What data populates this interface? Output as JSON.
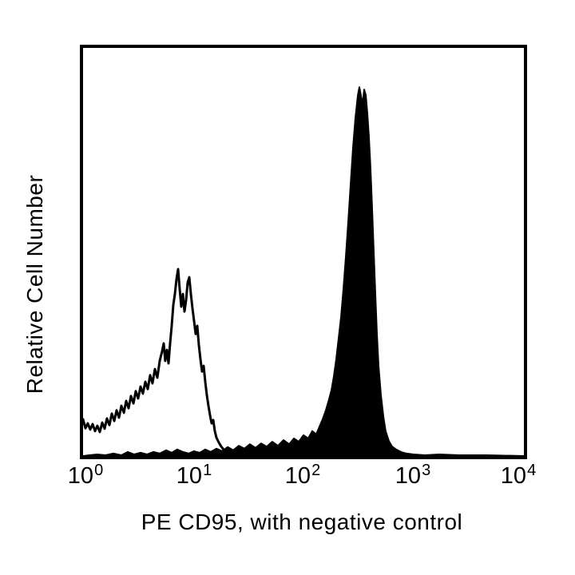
{
  "figure": {
    "background_color": "#ffffff",
    "ink_color": "#000000"
  },
  "chart_data": {
    "type": "area",
    "subtype": "flow-cytometry-overlay-histogram",
    "title": "",
    "xlabel": "PE CD95, with negative control",
    "ylabel": "Relative Cell Number",
    "x_scale": "log10",
    "xlim_log10": [
      0,
      4
    ],
    "ylim": [
      0,
      1
    ],
    "grid": false,
    "legend_position": "none",
    "x_ticks": [
      {
        "base": "10",
        "exp": "0",
        "log10": 0
      },
      {
        "base": "10",
        "exp": "1",
        "log10": 1
      },
      {
        "base": "10",
        "exp": "2",
        "log10": 2
      },
      {
        "base": "10",
        "exp": "3",
        "log10": 3
      },
      {
        "base": "10",
        "exp": "4",
        "log10": 4
      }
    ],
    "series": [
      {
        "name": "negative control",
        "style": "open-outline",
        "color": "#000000",
        "peak_log10x": 0.86,
        "peak_rel_height": 0.46,
        "points": [
          [
            0.0,
            0.09
          ],
          [
            0.022,
            0.068
          ],
          [
            0.043,
            0.08
          ],
          [
            0.065,
            0.065
          ],
          [
            0.087,
            0.078
          ],
          [
            0.109,
            0.061
          ],
          [
            0.13,
            0.074
          ],
          [
            0.152,
            0.059
          ],
          [
            0.174,
            0.082
          ],
          [
            0.196,
            0.067
          ],
          [
            0.217,
            0.092
          ],
          [
            0.239,
            0.076
          ],
          [
            0.261,
            0.104
          ],
          [
            0.283,
            0.086
          ],
          [
            0.304,
            0.112
          ],
          [
            0.326,
            0.094
          ],
          [
            0.348,
            0.123
          ],
          [
            0.37,
            0.106
          ],
          [
            0.391,
            0.135
          ],
          [
            0.413,
            0.117
          ],
          [
            0.435,
            0.147
          ],
          [
            0.457,
            0.129
          ],
          [
            0.478,
            0.159
          ],
          [
            0.5,
            0.141
          ],
          [
            0.522,
            0.17
          ],
          [
            0.543,
            0.153
          ],
          [
            0.565,
            0.182
          ],
          [
            0.587,
            0.164
          ],
          [
            0.609,
            0.198
          ],
          [
            0.63,
            0.178
          ],
          [
            0.652,
            0.213
          ],
          [
            0.674,
            0.192
          ],
          [
            0.696,
            0.233
          ],
          [
            0.717,
            0.256
          ],
          [
            0.732,
            0.276
          ],
          [
            0.746,
            0.233
          ],
          [
            0.761,
            0.26
          ],
          [
            0.775,
            0.227
          ],
          [
            0.79,
            0.276
          ],
          [
            0.804,
            0.319
          ],
          [
            0.819,
            0.37
          ],
          [
            0.833,
            0.397
          ],
          [
            0.848,
            0.433
          ],
          [
            0.862,
            0.458
          ],
          [
            0.877,
            0.409
          ],
          [
            0.891,
            0.366
          ],
          [
            0.906,
            0.397
          ],
          [
            0.92,
            0.354
          ],
          [
            0.935,
            0.382
          ],
          [
            0.949,
            0.425
          ],
          [
            0.964,
            0.438
          ],
          [
            0.978,
            0.397
          ],
          [
            0.993,
            0.362
          ],
          [
            1.007,
            0.331
          ],
          [
            1.022,
            0.299
          ],
          [
            1.036,
            0.319
          ],
          [
            1.051,
            0.272
          ],
          [
            1.065,
            0.237
          ],
          [
            1.08,
            0.207
          ],
          [
            1.094,
            0.221
          ],
          [
            1.109,
            0.182
          ],
          [
            1.123,
            0.149
          ],
          [
            1.138,
            0.123
          ],
          [
            1.152,
            0.1
          ],
          [
            1.167,
            0.08
          ],
          [
            1.181,
            0.088
          ],
          [
            1.196,
            0.061
          ],
          [
            1.21,
            0.045
          ],
          [
            1.232,
            0.033
          ],
          [
            1.254,
            0.023
          ],
          [
            1.275,
            0.016
          ],
          [
            1.304,
            0.01
          ],
          [
            1.333,
            0.014
          ],
          [
            1.362,
            0.008
          ],
          [
            1.399,
            0.006
          ],
          [
            1.442,
            0.01
          ],
          [
            1.493,
            0.006
          ],
          [
            1.551,
            0.008
          ],
          [
            1.616,
            0.006
          ],
          [
            1.696,
            0.004
          ],
          [
            1.797,
            0.006
          ],
          [
            1.913,
            0.004
          ],
          [
            2.036,
            0.004
          ],
          [
            2.145,
            0.002
          ]
        ]
      },
      {
        "name": "PE CD95",
        "style": "filled",
        "color": "#000000",
        "peak_log10x": 2.53,
        "peak_rel_height": 0.9,
        "points": [
          [
            0.0,
            0.0
          ],
          [
            0.058,
            0.002
          ],
          [
            0.13,
            0.004
          ],
          [
            0.203,
            0.002
          ],
          [
            0.275,
            0.006
          ],
          [
            0.348,
            0.002
          ],
          [
            0.406,
            0.01
          ],
          [
            0.464,
            0.004
          ],
          [
            0.522,
            0.008
          ],
          [
            0.58,
            0.004
          ],
          [
            0.638,
            0.01
          ],
          [
            0.696,
            0.006
          ],
          [
            0.754,
            0.014
          ],
          [
            0.804,
            0.008
          ],
          [
            0.855,
            0.016
          ],
          [
            0.906,
            0.01
          ],
          [
            0.957,
            0.006
          ],
          [
            1.007,
            0.012
          ],
          [
            1.058,
            0.008
          ],
          [
            1.109,
            0.016
          ],
          [
            1.159,
            0.01
          ],
          [
            1.21,
            0.018
          ],
          [
            1.261,
            0.012
          ],
          [
            1.312,
            0.022
          ],
          [
            1.362,
            0.014
          ],
          [
            1.413,
            0.025
          ],
          [
            1.464,
            0.018
          ],
          [
            1.514,
            0.029
          ],
          [
            1.565,
            0.02
          ],
          [
            1.616,
            0.031
          ],
          [
            1.667,
            0.023
          ],
          [
            1.717,
            0.035
          ],
          [
            1.768,
            0.025
          ],
          [
            1.819,
            0.039
          ],
          [
            1.87,
            0.029
          ],
          [
            1.913,
            0.043
          ],
          [
            1.957,
            0.035
          ],
          [
            2.0,
            0.051
          ],
          [
            2.043,
            0.043
          ],
          [
            2.08,
            0.061
          ],
          [
            2.116,
            0.053
          ],
          [
            2.145,
            0.072
          ],
          [
            2.174,
            0.09
          ],
          [
            2.203,
            0.112
          ],
          [
            2.232,
            0.139
          ],
          [
            2.254,
            0.162
          ],
          [
            2.275,
            0.194
          ],
          [
            2.297,
            0.237
          ],
          [
            2.319,
            0.288
          ],
          [
            2.341,
            0.342
          ],
          [
            2.362,
            0.409
          ],
          [
            2.384,
            0.487
          ],
          [
            2.406,
            0.573
          ],
          [
            2.428,
            0.667
          ],
          [
            2.449,
            0.755
          ],
          [
            2.471,
            0.828
          ],
          [
            2.493,
            0.883
          ],
          [
            2.507,
            0.904
          ],
          [
            2.522,
            0.883
          ],
          [
            2.536,
            0.861
          ],
          [
            2.551,
            0.898
          ],
          [
            2.565,
            0.885
          ],
          [
            2.58,
            0.84
          ],
          [
            2.594,
            0.781
          ],
          [
            2.609,
            0.703
          ],
          [
            2.623,
            0.605
          ],
          [
            2.638,
            0.501
          ],
          [
            2.652,
            0.397
          ],
          [
            2.667,
            0.299
          ],
          [
            2.681,
            0.221
          ],
          [
            2.703,
            0.149
          ],
          [
            2.725,
            0.096
          ],
          [
            2.746,
            0.061
          ],
          [
            2.775,
            0.037
          ],
          [
            2.804,
            0.023
          ],
          [
            2.841,
            0.016
          ],
          [
            2.884,
            0.01
          ],
          [
            2.935,
            0.006
          ],
          [
            3.0,
            0.004
          ],
          [
            3.101,
            0.002
          ],
          [
            3.232,
            0.004
          ],
          [
            3.413,
            0.002
          ],
          [
            3.667,
            0.002
          ],
          [
            4.0,
            0.0
          ]
        ]
      }
    ]
  }
}
